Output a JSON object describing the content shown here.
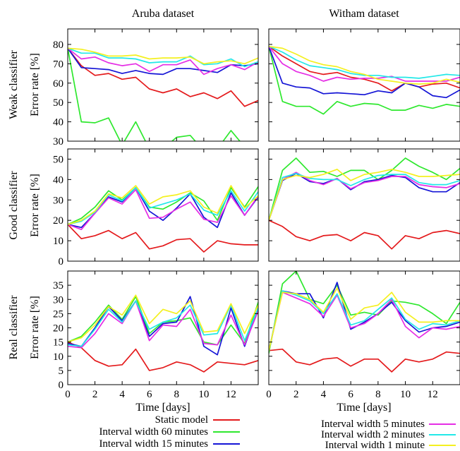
{
  "figure": {
    "column_titles": [
      "Aruba dataset",
      "Witham dataset"
    ],
    "row_labels": [
      "Weak classifier",
      "Good classifier",
      "Real classifier"
    ],
    "ylabel": "Error rate [%]",
    "xlabel": "Time [days]"
  },
  "legend": [
    {
      "name": "Static model",
      "color": "#e41a1c"
    },
    {
      "name": "Interval width 60 minutes",
      "color": "#2ee82e"
    },
    {
      "name": "Interval width 15 minutes",
      "color": "#1515d6"
    },
    {
      "name": "Interval width 5 minutes",
      "color": "#e52ee5"
    },
    {
      "name": "Interval width 2 minutes",
      "color": "#22e8e8"
    },
    {
      "name": "Interval width 1 minute",
      "color": "#f4f020"
    }
  ],
  "chart_data": [
    {
      "type": "line",
      "dataset": "Aruba dataset",
      "classifier": "Weak classifier",
      "xlabel": "Time [days]",
      "ylabel": "Error rate [%]",
      "xlim": [
        0,
        14
      ],
      "ylim": [
        30,
        88
      ],
      "yticks": [
        30,
        40,
        50,
        60,
        70,
        80
      ],
      "xticks": [],
      "x": [
        0,
        1,
        2,
        3,
        4,
        5,
        6,
        7,
        8,
        9,
        10,
        11,
        12,
        13,
        14
      ],
      "series": [
        {
          "name": "Static model",
          "values": [
            78,
            69,
            64,
            65,
            62,
            63,
            57,
            55,
            57,
            53,
            55,
            52,
            56,
            48,
            51
          ]
        },
        {
          "name": "Interval width 60 minutes",
          "values": [
            78,
            40,
            39.5,
            42,
            28,
            40,
            26,
            26,
            32,
            33,
            25,
            26,
            35.5,
            27,
            28
          ]
        },
        {
          "name": "Interval width 15 minutes",
          "values": [
            78,
            68,
            67.5,
            67,
            65,
            66.5,
            65,
            64.5,
            67.5,
            67.5,
            66.5,
            65.5,
            69.5,
            69,
            70
          ]
        },
        {
          "name": "Interval width 5 minutes",
          "values": [
            78,
            72.5,
            73.5,
            70.5,
            69,
            70,
            66,
            69.5,
            69.5,
            72,
            64.5,
            67.5,
            69.5,
            67,
            71
          ]
        },
        {
          "name": "Interval width 2 minutes",
          "values": [
            78,
            75.5,
            75.5,
            73,
            73,
            72.5,
            70.5,
            71,
            71,
            74,
            69.5,
            70,
            72.5,
            68.5,
            71
          ]
        },
        {
          "name": "Interval width 1 minute",
          "values": [
            78,
            77.5,
            76,
            74,
            74,
            74.5,
            72.5,
            73,
            73,
            73.5,
            70,
            71,
            71.5,
            70,
            73
          ]
        }
      ]
    },
    {
      "type": "line",
      "dataset": "Witham dataset",
      "classifier": "Weak classifier",
      "xlabel": "Time [days]",
      "ylabel": "Error rate [%]",
      "xlim": [
        0,
        14
      ],
      "ylim": [
        30,
        88
      ],
      "yticks": [],
      "xticks": [],
      "x": [
        0,
        1,
        2,
        3,
        4,
        5,
        6,
        7,
        8,
        9,
        10,
        11,
        12,
        13,
        14
      ],
      "series": [
        {
          "name": "Static model",
          "values": [
            79,
            74,
            70,
            66,
            64.5,
            65.5,
            63,
            62,
            60,
            56,
            60,
            58,
            59.5,
            60,
            57.5
          ]
        },
        {
          "name": "Interval width 60 minutes",
          "values": [
            79,
            50.5,
            48,
            48,
            44,
            50.5,
            48,
            49.5,
            49,
            46,
            46,
            48.5,
            47,
            49,
            48
          ]
        },
        {
          "name": "Interval width 15 minutes",
          "values": [
            79,
            60,
            58,
            57.5,
            54.5,
            55,
            54.5,
            54,
            56,
            55,
            60,
            58,
            53.5,
            52.5,
            56.5
          ]
        },
        {
          "name": "Interval width 5 minutes",
          "values": [
            79,
            70,
            66,
            64,
            61,
            63,
            62,
            62.5,
            62.5,
            63.5,
            61,
            61,
            61,
            61,
            63
          ]
        },
        {
          "name": "Interval width 2 minutes",
          "values": [
            79,
            76,
            72,
            69,
            68,
            67,
            65,
            64,
            64,
            63,
            63,
            62.5,
            63.5,
            64.5,
            64
          ]
        },
        {
          "name": "Interval width 1 minute",
          "values": [
            79,
            78,
            75,
            71.5,
            69.5,
            68.5,
            66,
            64.5,
            62,
            61,
            60,
            59.5,
            60,
            62,
            60.5
          ]
        }
      ]
    },
    {
      "type": "line",
      "dataset": "Aruba dataset",
      "classifier": "Good classifier",
      "xlabel": "Time [days]",
      "ylabel": "Error rate [%]",
      "xlim": [
        0,
        14
      ],
      "ylim": [
        0,
        55
      ],
      "yticks": [
        0,
        10,
        20,
        30,
        40,
        50
      ],
      "xticks": [],
      "x": [
        0,
        1,
        2,
        3,
        4,
        5,
        6,
        7,
        8,
        9,
        10,
        11,
        12,
        13,
        14
      ],
      "series": [
        {
          "name": "Static model",
          "values": [
            18,
            11,
            12.5,
            15,
            11,
            14,
            6,
            7.5,
            10.5,
            11,
            4.5,
            10,
            8.5,
            8,
            8
          ]
        },
        {
          "name": "Interval width 60 minutes",
          "values": [
            18,
            21,
            26.5,
            34.5,
            30,
            36,
            26.5,
            25.5,
            29,
            33.5,
            29.5,
            20,
            36,
            26.5,
            36.5
          ]
        },
        {
          "name": "Interval width 15 minutes",
          "values": [
            18,
            16.5,
            23.5,
            31.5,
            29,
            36,
            24.5,
            20,
            26,
            33,
            21.5,
            16.5,
            33.5,
            22.5,
            31.5
          ]
        },
        {
          "name": "Interval width 5 minutes",
          "values": [
            18,
            15.5,
            23.5,
            31,
            28,
            35,
            21,
            21.5,
            25.5,
            29,
            20.5,
            19,
            32,
            22.5,
            32
          ]
        },
        {
          "name": "Interval width 2 minutes",
          "values": [
            18,
            19.5,
            24,
            32.5,
            29.5,
            36,
            26,
            28,
            30,
            33,
            25,
            22.5,
            34.5,
            24.5,
            34
          ]
        },
        {
          "name": "Interval width 1 minute",
          "values": [
            18,
            20,
            24.5,
            33,
            31,
            37,
            28,
            31.5,
            32.5,
            34.5,
            26.5,
            23.5,
            37,
            26,
            32
          ]
        }
      ]
    },
    {
      "type": "line",
      "dataset": "Witham dataset",
      "classifier": "Good classifier",
      "xlabel": "Time [days]",
      "ylabel": "Error rate [%]",
      "xlim": [
        0,
        14
      ],
      "ylim": [
        0,
        55
      ],
      "yticks": [],
      "xticks": [],
      "x": [
        0,
        1,
        2,
        3,
        4,
        5,
        6,
        7,
        8,
        9,
        10,
        11,
        12,
        13,
        14
      ],
      "series": [
        {
          "name": "Static model",
          "values": [
            20,
            17,
            12,
            10,
            12.5,
            13,
            10,
            14,
            12.5,
            6,
            12.5,
            11,
            14,
            15,
            13.5
          ]
        },
        {
          "name": "Interval width 60 minutes",
          "values": [
            20,
            44.5,
            50.5,
            43.5,
            44,
            41.5,
            44.5,
            44.5,
            40,
            44.5,
            50.5,
            46.5,
            43.5,
            40,
            45.5
          ]
        },
        {
          "name": "Interval width 15 minutes",
          "values": [
            20,
            39.5,
            43,
            39,
            38,
            40.5,
            35,
            39,
            40,
            42,
            41,
            36,
            34,
            34,
            38.5
          ]
        },
        {
          "name": "Interval width 5 minutes",
          "values": [
            20,
            40,
            43.5,
            39.5,
            37.5,
            40.5,
            35.5,
            38.5,
            39.5,
            41.5,
            41.5,
            37.5,
            36.5,
            36,
            38
          ]
        },
        {
          "name": "Interval width 2 minutes",
          "values": [
            20,
            41,
            43,
            40.5,
            40,
            40,
            37,
            40,
            42,
            42.5,
            42.5,
            38.5,
            37.5,
            37.5,
            39.5
          ]
        },
        {
          "name": "Interval width 1 minute",
          "values": [
            20,
            40,
            42,
            41,
            42.5,
            45,
            39.5,
            42.5,
            43.5,
            45,
            43.5,
            41.5,
            41.5,
            42,
            42.5
          ]
        }
      ]
    },
    {
      "type": "line",
      "dataset": "Aruba dataset",
      "classifier": "Real classifier",
      "xlabel": "Time [days]",
      "ylabel": "Error rate [%]",
      "xlim": [
        0,
        14
      ],
      "ylim": [
        0,
        40
      ],
      "yticks": [
        0,
        5,
        10,
        15,
        20,
        25,
        30,
        35
      ],
      "xticks": [
        0,
        2,
        4,
        6,
        8,
        10,
        12
      ],
      "x": [
        0,
        1,
        2,
        3,
        4,
        5,
        6,
        7,
        8,
        9,
        10,
        11,
        12,
        13,
        14
      ],
      "series": [
        {
          "name": "Static model",
          "values": [
            15,
            13,
            8.5,
            6.5,
            7,
            12.5,
            5,
            6,
            8,
            7,
            4.5,
            8,
            7.5,
            7,
            8.5
          ]
        },
        {
          "name": "Interval width 60 minutes",
          "values": [
            15,
            17,
            22,
            28,
            23,
            31,
            18,
            22,
            22.5,
            23.5,
            15,
            14,
            21,
            14.5,
            29
          ]
        },
        {
          "name": "Interval width 15 minutes",
          "values": [
            14.5,
            13.5,
            20,
            27.5,
            22.5,
            29.5,
            17,
            21.5,
            22,
            31,
            13.5,
            10.5,
            27,
            13.5,
            27
          ]
        },
        {
          "name": "Interval width 5 minutes",
          "values": [
            13.5,
            13,
            18,
            25,
            21.5,
            29.5,
            15.5,
            21,
            20.5,
            26.5,
            14.5,
            14,
            24.5,
            14,
            26
          ]
        },
        {
          "name": "Interval width 2 minutes",
          "values": [
            14,
            13.5,
            19.5,
            26.5,
            22,
            29.5,
            19.5,
            22,
            23.5,
            28,
            17.5,
            18,
            28,
            15.5,
            27
          ]
        },
        {
          "name": "Interval width 1 minute",
          "values": [
            15,
            16.5,
            21,
            27.5,
            24.5,
            31.5,
            21.5,
            26.5,
            25,
            29.5,
            18.5,
            19,
            28.5,
            18,
            28
          ]
        }
      ]
    },
    {
      "type": "line",
      "dataset": "Witham dataset",
      "classifier": "Real classifier",
      "xlabel": "Time [days]",
      "ylabel": "Error rate [%]",
      "xlim": [
        0,
        14
      ],
      "ylim": [
        0,
        40
      ],
      "yticks": [],
      "xticks": [
        0,
        2,
        4,
        6,
        8,
        10,
        12
      ],
      "x": [
        0,
        1,
        2,
        3,
        4,
        5,
        6,
        7,
        8,
        9,
        10,
        11,
        12,
        13,
        14
      ],
      "series": [
        {
          "name": "Static model",
          "values": [
            12,
            12.5,
            8,
            7,
            9,
            9.5,
            6.5,
            9,
            9,
            4.5,
            9,
            8,
            9,
            11.5,
            11
          ]
        },
        {
          "name": "Interval width 60 minutes",
          "values": [
            11,
            35.5,
            40,
            30,
            28.5,
            35,
            24.5,
            25.5,
            24.5,
            29.5,
            29,
            28,
            25,
            21.5,
            29
          ]
        },
        {
          "name": "Interval width 15 minutes",
          "values": [
            12,
            33,
            32,
            32,
            23.5,
            36,
            19.5,
            22,
            25,
            29,
            22.5,
            18.5,
            20,
            20.5,
            22
          ]
        },
        {
          "name": "Interval width 5 minutes",
          "values": [
            12,
            32.5,
            30.5,
            28.5,
            24,
            31.5,
            20,
            21.5,
            25,
            30,
            20.5,
            16.5,
            20,
            19.5,
            20.5
          ]
        },
        {
          "name": "Interval width 2 minutes",
          "values": [
            12,
            33,
            31.5,
            29.5,
            25,
            32,
            21,
            22.5,
            26.5,
            30.5,
            23,
            19.5,
            21.5,
            21,
            22.5
          ]
        },
        {
          "name": "Interval width 1 minute",
          "values": [
            12,
            32.5,
            32,
            30,
            25.5,
            34,
            23,
            27,
            28,
            32.5,
            25.5,
            22,
            22,
            22.5,
            22.5
          ]
        }
      ]
    }
  ]
}
